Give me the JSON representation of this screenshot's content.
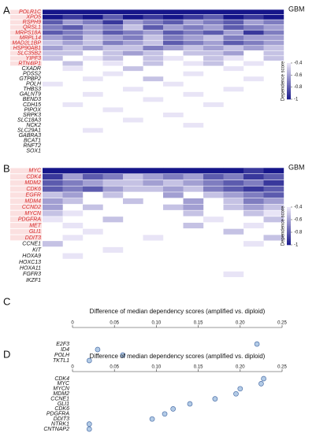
{
  "panels": [
    {
      "letter": "A",
      "tag": "GBM",
      "legend": {
        "title": "Dependence score",
        "ticks": [
          -0.4,
          -0.6,
          -0.8,
          -1
        ]
      },
      "rows": [
        {
          "gene": "POLR1C",
          "highlight": true,
          "scores": [
            -1,
            -1,
            -1,
            -1,
            -1,
            -1,
            -1,
            -1,
            -1,
            -1,
            -1,
            -1
          ]
        },
        {
          "gene": "XPO5",
          "highlight": true,
          "scores": [
            -1,
            -0.9,
            -1,
            -0.8,
            -1,
            -0.9,
            -1,
            -0.9,
            -0.8,
            -1,
            -0.9,
            -1
          ]
        },
        {
          "gene": "RSPH9",
          "highlight": true,
          "scores": [
            -0.8,
            -0.6,
            -0.7,
            -0.9,
            -0.6,
            -0.7,
            -0.8,
            -0.6,
            -0.7,
            -0.8,
            -0.6,
            -0.7
          ]
        },
        {
          "gene": "QRSL1",
          "highlight": true,
          "scores": [
            -0.7,
            -0.8,
            -0.6,
            -0.7,
            -0.5,
            -0.8,
            -0.6,
            -0.7,
            -0.6,
            -0.8,
            -0.7,
            -0.6
          ]
        },
        {
          "gene": "MRPS18A",
          "highlight": true,
          "scores": [
            -0.8,
            -0.7,
            -0.6,
            -0.8,
            -0.7,
            -0.6,
            -0.8,
            -0.7,
            -0.8,
            -0.6,
            -0.9,
            -0.7
          ]
        },
        {
          "gene": "MRPL14",
          "highlight": true,
          "scores": [
            -0.6,
            -0.7,
            -0.5,
            -0.6,
            -0.7,
            -0.5,
            -0.7,
            -0.6,
            -0.5,
            -0.7,
            -0.6,
            -0.6
          ]
        },
        {
          "gene": "MAD2L1BP",
          "highlight": true,
          "scores": [
            -0.5,
            -0.6,
            -0.5,
            -0.7,
            -0.6,
            -0.5,
            -0.8,
            -0.7,
            -0.6,
            -0.8,
            -0.7,
            -0.6
          ]
        },
        {
          "gene": "HSP90AB1",
          "highlight": true,
          "scores": [
            -0.6,
            -0.5,
            -0.6,
            -0.5,
            -0.5,
            -0.7,
            -0.6,
            -0.5,
            -0.6,
            -0.5,
            -0.6,
            -0.5
          ]
        },
        {
          "gene": "SLC35B2",
          "highlight": true,
          "scores": [
            -0.5,
            -0.5,
            null,
            -0.5,
            -0.6,
            -0.5,
            null,
            -0.5,
            -0.5,
            -0.6,
            null,
            -0.5
          ]
        },
        {
          "gene": "YIPF3",
          "highlight": true,
          "scores": [
            -0.5,
            null,
            -0.4,
            -0.5,
            null,
            -0.5,
            -0.4,
            null,
            -0.5,
            -0.4,
            null,
            -0.5
          ]
        },
        {
          "gene": "RTN4IP1",
          "highlight": true,
          "scores": [
            null,
            -0.5,
            null,
            -0.4,
            null,
            -0.5,
            null,
            -0.4,
            -0.5,
            null,
            -0.4,
            null
          ]
        },
        {
          "gene": "CXADR",
          "highlight": false,
          "scores": [
            null,
            -0.4,
            null,
            null,
            -0.5,
            null,
            null,
            null,
            null,
            -0.4,
            null,
            null
          ]
        },
        {
          "gene": "PDSS2",
          "highlight": false,
          "scores": [
            null,
            null,
            null,
            -0.4,
            null,
            null,
            null,
            -0.4,
            null,
            null,
            null,
            null
          ]
        },
        {
          "gene": "GTPBP2",
          "highlight": false,
          "scores": [
            null,
            null,
            -0.4,
            null,
            null,
            -0.5,
            null,
            null,
            null,
            null,
            -0.4,
            null
          ]
        },
        {
          "gene": "POLH",
          "highlight": false,
          "scores": [
            -0.4,
            null,
            null,
            null,
            null,
            null,
            -0.4,
            null,
            null,
            null,
            null,
            null
          ]
        },
        {
          "gene": "THBS3",
          "highlight": false,
          "scores": [
            null,
            null,
            null,
            null,
            -0.4,
            null,
            null,
            null,
            null,
            -0.4,
            null,
            null
          ]
        },
        {
          "gene": "GALNT9",
          "highlight": false,
          "scores": [
            null,
            null,
            -0.4,
            null,
            null,
            null,
            null,
            -0.4,
            null,
            null,
            null,
            null
          ]
        },
        {
          "gene": "BEND3",
          "highlight": false,
          "scores": [
            null,
            null,
            null,
            null,
            null,
            -0.4,
            null,
            null,
            null,
            null,
            null,
            null
          ]
        },
        {
          "gene": "CDH15",
          "highlight": false,
          "scores": [
            null,
            -0.4,
            null,
            null,
            null,
            null,
            null,
            null,
            -0.4,
            null,
            null,
            null
          ]
        },
        {
          "gene": "PIPOX",
          "highlight": false,
          "scores": [
            null,
            null,
            null,
            -0.4,
            null,
            null,
            null,
            null,
            null,
            null,
            null,
            null
          ]
        },
        {
          "gene": "SRPK3",
          "highlight": false,
          "scores": [
            null,
            null,
            null,
            null,
            null,
            null,
            -0.4,
            null,
            null,
            null,
            null,
            null
          ]
        },
        {
          "gene": "SLC18A3",
          "highlight": false,
          "scores": [
            null,
            null,
            null,
            null,
            -0.4,
            null,
            null,
            null,
            null,
            null,
            null,
            null
          ]
        },
        {
          "gene": "NCK2",
          "highlight": false,
          "scores": [
            null,
            null,
            null,
            null,
            null,
            null,
            null,
            -0.4,
            null,
            null,
            null,
            null
          ]
        },
        {
          "gene": "SLC29A1",
          "highlight": false,
          "scores": [
            null,
            null,
            -0.4,
            null,
            null,
            null,
            null,
            null,
            null,
            null,
            null,
            null
          ]
        },
        {
          "gene": "GABRA3",
          "highlight": false,
          "scores": [
            null,
            null,
            null,
            null,
            null,
            null,
            null,
            null,
            null,
            null,
            null,
            null
          ]
        },
        {
          "gene": "BCAT1",
          "highlight": false,
          "scores": [
            null,
            null,
            null,
            null,
            null,
            null,
            null,
            null,
            null,
            null,
            null,
            null
          ]
        },
        {
          "gene": "RNFT2",
          "highlight": false,
          "scores": [
            null,
            null,
            null,
            null,
            null,
            null,
            null,
            null,
            null,
            null,
            null,
            null
          ]
        },
        {
          "gene": "SOX1",
          "highlight": false,
          "scores": [
            null,
            null,
            null,
            null,
            null,
            null,
            null,
            null,
            null,
            null,
            null,
            null
          ]
        }
      ]
    },
    {
      "letter": "B",
      "tag": "GBM",
      "legend": {
        "title": "Dependence score",
        "ticks": [
          -0.4,
          -0.6,
          -0.8,
          -1
        ]
      },
      "rows": [
        {
          "gene": "MYC",
          "highlight": true,
          "scores": [
            -1,
            -1,
            -1,
            -1,
            -1,
            -1,
            -1,
            -1,
            -1,
            -1,
            -0.9,
            -1
          ]
        },
        {
          "gene": "CDK4",
          "highlight": true,
          "scores": [
            -0.9,
            -0.6,
            -0.8,
            -0.7,
            -0.5,
            -0.6,
            -0.7,
            -0.6,
            -0.8,
            -0.7,
            -0.9,
            -0.8
          ]
        },
        {
          "gene": "MDM2",
          "highlight": true,
          "scores": [
            -0.8,
            -0.7,
            -0.6,
            -0.5,
            -0.5,
            -0.6,
            -0.5,
            -0.6,
            -0.7,
            -0.8,
            -0.7,
            -0.9
          ]
        },
        {
          "gene": "CDK6",
          "highlight": true,
          "scores": [
            -0.8,
            -0.7,
            -0.8,
            -0.6,
            -0.5,
            -0.5,
            -0.6,
            -0.5,
            -0.7,
            -0.8,
            -0.9,
            -0.8
          ]
        },
        {
          "gene": "EGFR",
          "highlight": true,
          "scores": [
            -0.5,
            -0.6,
            null,
            -0.5,
            null,
            null,
            -0.6,
            null,
            -0.5,
            -0.6,
            -0.7,
            -0.8
          ]
        },
        {
          "gene": "MDM4",
          "highlight": true,
          "scores": [
            -0.6,
            -0.5,
            null,
            null,
            -0.5,
            null,
            null,
            -0.6,
            null,
            -0.5,
            -0.7,
            -0.6
          ]
        },
        {
          "gene": "CCND2",
          "highlight": true,
          "scores": [
            -0.6,
            null,
            -0.5,
            null,
            null,
            null,
            -0.5,
            -0.6,
            null,
            -0.5,
            -0.6,
            -0.5
          ]
        },
        {
          "gene": "MYCN",
          "highlight": true,
          "scores": [
            -0.5,
            -0.4,
            null,
            null,
            null,
            null,
            null,
            -0.5,
            null,
            null,
            -0.5,
            -0.4
          ]
        },
        {
          "gene": "PDGFRA",
          "highlight": true,
          "scores": [
            -0.4,
            null,
            null,
            -0.5,
            null,
            null,
            null,
            null,
            -0.4,
            null,
            null,
            -0.5
          ]
        },
        {
          "gene": "MET",
          "highlight": true,
          "scores": [
            null,
            -0.4,
            null,
            null,
            null,
            null,
            null,
            -0.5,
            null,
            null,
            -0.4,
            null
          ]
        },
        {
          "gene": "GLI1",
          "highlight": true,
          "scores": [
            null,
            null,
            -0.4,
            null,
            null,
            null,
            null,
            null,
            null,
            -0.5,
            null,
            null
          ]
        },
        {
          "gene": "DDIT3",
          "highlight": true,
          "scores": [
            null,
            -0.4,
            null,
            null,
            null,
            -0.4,
            null,
            null,
            null,
            null,
            null,
            -0.5
          ]
        },
        {
          "gene": "CCNE1",
          "highlight": false,
          "scores": [
            -0.5,
            null,
            null,
            null,
            null,
            null,
            null,
            null,
            null,
            null,
            -0.4,
            null
          ]
        },
        {
          "gene": "KIT",
          "highlight": false,
          "scores": [
            null,
            null,
            null,
            -0.4,
            null,
            null,
            null,
            null,
            null,
            null,
            null,
            null
          ]
        },
        {
          "gene": "HOXA9",
          "highlight": false,
          "scores": [
            null,
            -0.4,
            null,
            null,
            null,
            null,
            null,
            null,
            null,
            null,
            null,
            null
          ]
        },
        {
          "gene": "HOXC13",
          "highlight": false,
          "scores": [
            null,
            null,
            null,
            null,
            null,
            null,
            null,
            null,
            null,
            null,
            null,
            null
          ]
        },
        {
          "gene": "HOXA11",
          "highlight": false,
          "scores": [
            null,
            null,
            null,
            null,
            null,
            null,
            null,
            null,
            null,
            null,
            null,
            null
          ]
        },
        {
          "gene": "FGFR3",
          "highlight": false,
          "scores": [
            null,
            null,
            null,
            null,
            null,
            null,
            null,
            null,
            null,
            -0.4,
            null,
            null
          ]
        },
        {
          "gene": "IKZF1",
          "highlight": false,
          "scores": [
            null,
            null,
            null,
            null,
            null,
            null,
            null,
            null,
            null,
            null,
            null,
            null
          ]
        }
      ]
    }
  ],
  "dotplots": [
    {
      "letter": "C",
      "title": "Difference of median dependency scores (amplified vs. diploid)",
      "xlim": [
        0,
        0.25
      ],
      "xticks": [
        0,
        0.05,
        {
          "value": 0.1,
          "label": "0.10"
        },
        0.15,
        {
          "value": 0.2,
          "label": "0.20"
        },
        0.25
      ],
      "genes": [
        "E2F3",
        "ID4",
        "POLH",
        "TKTL1"
      ],
      "values": [
        0.22,
        0.03,
        0.06,
        0.02
      ]
    },
    {
      "letter": "D",
      "title": "Difference of median dependency scores (amplified vs. diploid)",
      "xlim": [
        0,
        0.25
      ],
      "xticks": [
        0,
        0.05,
        {
          "value": 0.1,
          "label": "0.10"
        },
        0.15,
        {
          "value": 0.2,
          "label": "0.20"
        },
        0.25
      ],
      "genes": [
        "CDK4",
        "MYC",
        "MYCN",
        "MDM2",
        "CCNE1",
        "GLI1",
        "CDK6",
        "PDGFRA",
        "DDIT3",
        "NTRK1",
        "CNTNAP2"
      ],
      "values": [
        0.228,
        0.225,
        0.2,
        0.195,
        0.17,
        0.14,
        0.12,
        0.11,
        0.095,
        0.02,
        0.02
      ]
    }
  ]
}
